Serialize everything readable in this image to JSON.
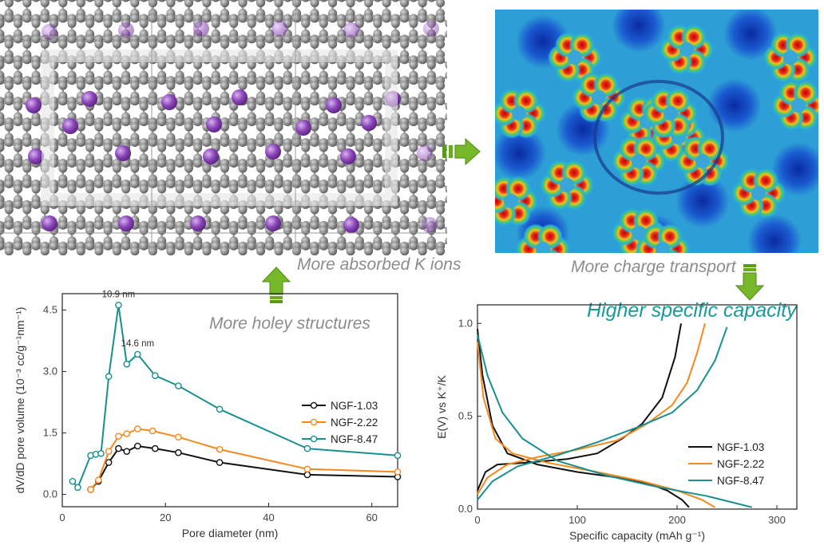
{
  "figure": {
    "top_left_panel": "graphene-lattice-with-k-ions",
    "top_right_panel": "charge-density-map",
    "colors": {
      "carbon": "#8a8a8a",
      "potassium": "#8a44b8",
      "arrow": "#76b82a",
      "caption": "#8c8c8c",
      "highlight_caption": "#1a9a9a"
    }
  },
  "captions": {
    "absorbed": "More absorbed K ions",
    "charge": "More charge transport",
    "holey": "More holey structures",
    "capacity": "Higher specific capacity"
  },
  "chart_data": [
    {
      "type": "line",
      "xlabel": "Pore diameter (nm)",
      "ylabel": "dV/dD pore volume (10⁻³ cc/g⁻¹nm⁻¹)",
      "xlim": [
        0,
        65
      ],
      "ylim": [
        -0.3,
        4.9
      ],
      "xticks": [
        "0",
        "20",
        "40",
        "60"
      ],
      "yticks": [
        "0.0",
        "1.5",
        "3.0",
        "4.5"
      ],
      "markers": true,
      "legend_position": "right-middle",
      "annotations": [
        {
          "text": "10.9 nm",
          "x": 10.9,
          "y": 4.62
        },
        {
          "text": "14.6 nm",
          "x": 14.6,
          "y": 3.42
        }
      ],
      "series": [
        {
          "name": "NGF-1.03",
          "color": "#111111",
          "x": [
            5.5,
            7.0,
            9.0,
            10.9,
            12.5,
            14.6,
            18.0,
            22.5,
            30.5,
            47.5,
            65.0
          ],
          "y": [
            0.12,
            0.32,
            0.78,
            1.12,
            1.05,
            1.18,
            1.12,
            1.02,
            0.78,
            0.48,
            0.43
          ]
        },
        {
          "name": "NGF-2.22",
          "color": "#f5891e",
          "x": [
            5.5,
            7.0,
            9.0,
            10.9,
            12.5,
            14.6,
            17.5,
            22.5,
            30.5,
            47.5,
            65.0
          ],
          "y": [
            0.12,
            0.35,
            1.05,
            1.42,
            1.48,
            1.6,
            1.55,
            1.4,
            1.1,
            0.62,
            0.55
          ]
        },
        {
          "name": "NGF-8.47",
          "color": "#1a8f8f",
          "x": [
            2.0,
            3.0,
            5.5,
            6.5,
            7.5,
            9.0,
            10.9,
            12.5,
            14.6,
            18.0,
            22.5,
            30.5,
            47.5,
            65.0
          ],
          "y": [
            0.32,
            0.17,
            0.95,
            0.98,
            1.0,
            2.88,
            4.62,
            3.18,
            3.42,
            2.9,
            2.65,
            2.08,
            1.12,
            0.95
          ]
        }
      ]
    },
    {
      "type": "line",
      "xlabel": "Specific capacity (mAh g⁻¹)",
      "ylabel": "E(V) vs K⁺/K",
      "xlim": [
        0,
        320
      ],
      "ylim": [
        0,
        1.1
      ],
      "xticks": [
        "0",
        "100",
        "200",
        "300"
      ],
      "yticks": [
        "0.0",
        "0.5",
        "1.0"
      ],
      "markers": false,
      "legend_position": "bottom-right",
      "series": [
        {
          "name": "NGF-1.03",
          "color": "#111111",
          "discharge": {
            "x": [
              0,
              5,
              15,
              30,
              60,
              100,
              140,
              170,
              190,
              205,
              212
            ],
            "y": [
              0.97,
              0.72,
              0.45,
              0.3,
              0.24,
              0.2,
              0.17,
              0.14,
              0.1,
              0.05,
              0.01
            ]
          },
          "charge": {
            "x": [
              0,
              8,
              20,
              50,
              90,
              120,
              145,
              165,
              185,
              198,
              204
            ],
            "y": [
              0.1,
              0.2,
              0.24,
              0.25,
              0.27,
              0.3,
              0.38,
              0.46,
              0.6,
              0.82,
              1.0
            ]
          }
        },
        {
          "name": "NGF-2.22",
          "color": "#f5891e",
          "discharge": {
            "x": [
              0,
              6,
              18,
              35,
              70,
              120,
              165,
              200,
              225,
              238
            ],
            "y": [
              0.9,
              0.6,
              0.38,
              0.3,
              0.25,
              0.2,
              0.15,
              0.1,
              0.05,
              0.01
            ]
          },
          "charge": {
            "x": [
              0,
              10,
              30,
              60,
              100,
              140,
              170,
              195,
              210,
              220,
              228
            ],
            "y": [
              0.08,
              0.17,
              0.24,
              0.28,
              0.32,
              0.37,
              0.46,
              0.56,
              0.68,
              0.84,
              1.0
            ]
          }
        },
        {
          "name": "NGF-8.47",
          "color": "#1a8f8f",
          "discharge": {
            "x": [
              0,
              10,
              25,
              45,
              80,
              130,
              180,
              230,
              260,
              275
            ],
            "y": [
              0.94,
              0.72,
              0.52,
              0.38,
              0.26,
              0.18,
              0.12,
              0.07,
              0.03,
              0.01
            ]
          },
          "charge": {
            "x": [
              0,
              15,
              40,
              80,
              120,
              160,
              195,
              220,
              238,
              250
            ],
            "y": [
              0.05,
              0.15,
              0.23,
              0.29,
              0.36,
              0.44,
              0.52,
              0.64,
              0.8,
              0.98
            ]
          }
        }
      ]
    }
  ]
}
